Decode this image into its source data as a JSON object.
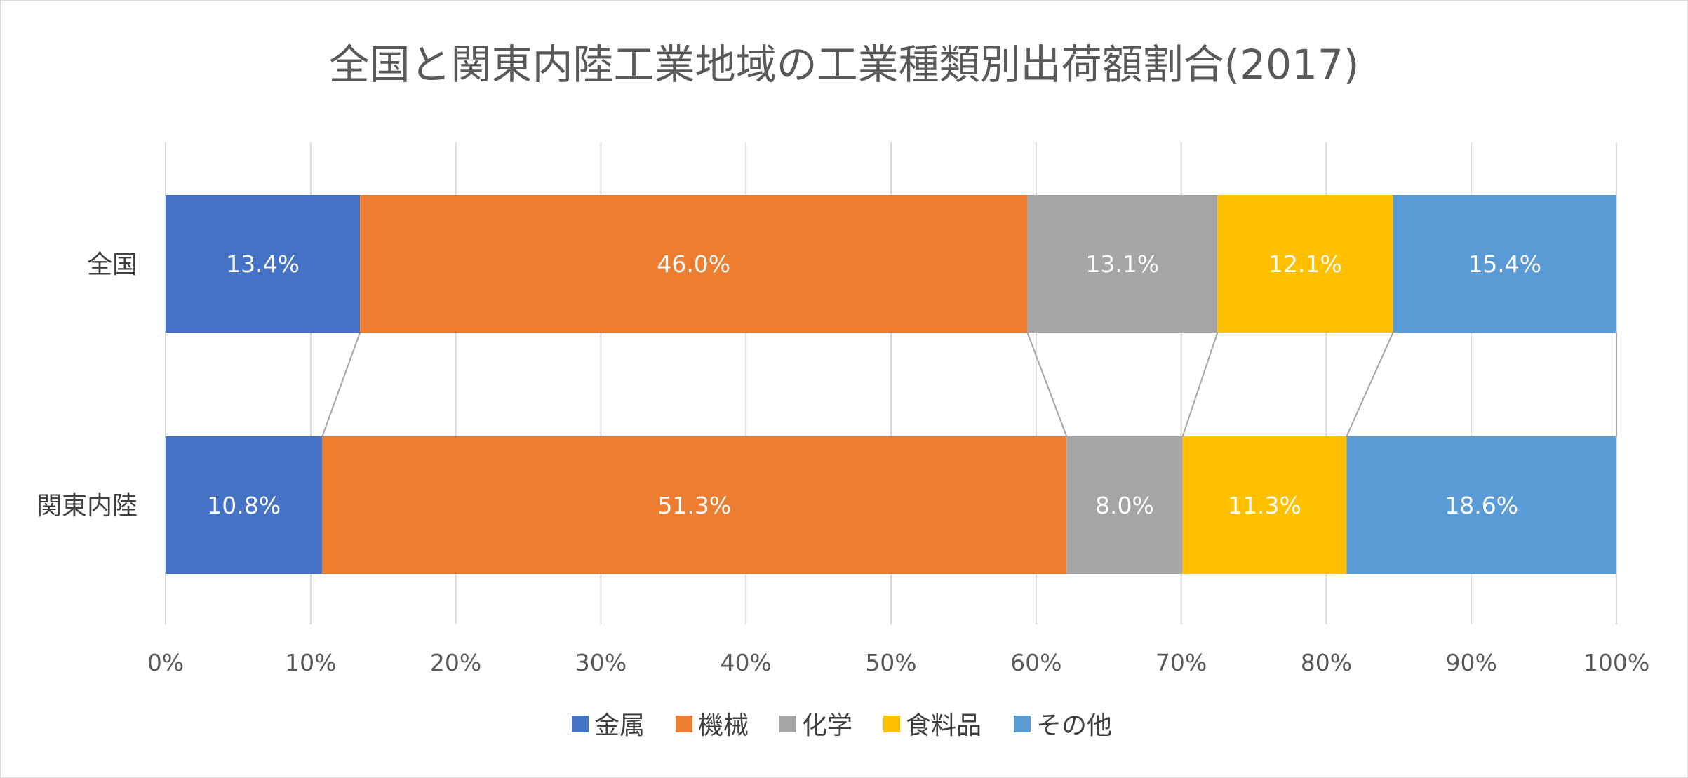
{
  "chart_data": {
    "type": "bar",
    "orientation": "horizontal",
    "stacked": "100%",
    "title": "全国と関東内陸工業地域の工業種類別出荷額割合(2017)",
    "categories": [
      "全国",
      "関東内陸"
    ],
    "series": [
      {
        "name": "金属",
        "color": "#4472C4",
        "values": [
          13.4,
          10.8
        ],
        "labels": [
          "13.4%",
          "10.8%"
        ]
      },
      {
        "name": "機械",
        "color": "#ED7D31",
        "values": [
          46.0,
          51.3
        ],
        "labels": [
          "46.0%",
          "51.3%"
        ]
      },
      {
        "name": "化学",
        "color": "#A5A5A5",
        "values": [
          13.1,
          8.0
        ],
        "labels": [
          "13.1%",
          "8.0%"
        ]
      },
      {
        "name": "食料品",
        "color": "#FFC000",
        "values": [
          12.1,
          11.3
        ],
        "labels": [
          "12.1%",
          "11.3%"
        ]
      },
      {
        "name": "その他",
        "color": "#5B9BD5",
        "values": [
          15.4,
          18.6
        ],
        "labels": [
          "15.4%",
          "18.6%"
        ]
      }
    ],
    "xlim": [
      0,
      100
    ],
    "xticks": [
      "0%",
      "10%",
      "20%",
      "30%",
      "40%",
      "50%",
      "60%",
      "70%",
      "80%",
      "90%",
      "100%"
    ],
    "series_lines": true,
    "grid": true,
    "legend_position": "bottom"
  }
}
